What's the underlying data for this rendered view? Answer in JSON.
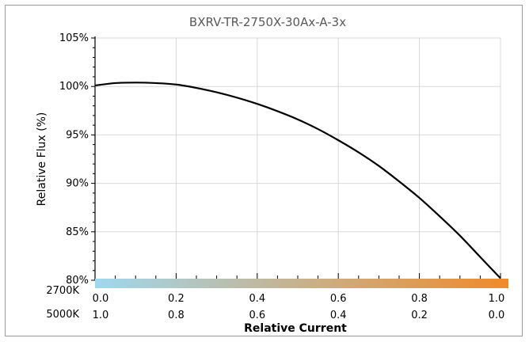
{
  "chart_data": {
    "type": "line",
    "title": "BXRV-TR-2750X-30Ax-A-3x",
    "xlabel": "Relative Current",
    "ylabel": "Relative Flux (%)",
    "xlim": [
      0.0,
      1.0
    ],
    "ylim": [
      80,
      105
    ],
    "yticks": [
      {
        "value": 80,
        "label": "80%"
      },
      {
        "value": 85,
        "label": "85%"
      },
      {
        "value": 90,
        "label": "90%"
      },
      {
        "value": 95,
        "label": "95%"
      },
      {
        "value": 100,
        "label": "100%"
      },
      {
        "value": 105,
        "label": "105%"
      }
    ],
    "xticks_top": [
      {
        "value": 0.0,
        "label": "0.0"
      },
      {
        "value": 0.2,
        "label": "0.2"
      },
      {
        "value": 0.4,
        "label": "0.4"
      },
      {
        "value": 0.6,
        "label": "0.6"
      },
      {
        "value": 0.8,
        "label": "0.8"
      },
      {
        "value": 1.0,
        "label": "1.0"
      }
    ],
    "xticks_bottom": [
      {
        "value": 0.0,
        "label": "1.0"
      },
      {
        "value": 0.2,
        "label": "0.8"
      },
      {
        "value": 0.4,
        "label": "0.6"
      },
      {
        "value": 0.6,
        "label": "0.4"
      },
      {
        "value": 0.8,
        "label": "0.2"
      },
      {
        "value": 1.0,
        "label": "0.0"
      }
    ],
    "cct_labels": {
      "top": "2700K",
      "bottom": "5000K"
    },
    "gradient": {
      "start": "#9fd8ee",
      "end": "#f08a2a"
    },
    "grid": true,
    "series": [
      {
        "color": "#000000",
        "x": [
          0.0,
          0.05,
          0.1,
          0.15,
          0.2,
          0.25,
          0.3,
          0.35,
          0.4,
          0.45,
          0.5,
          0.55,
          0.6,
          0.65,
          0.7,
          0.75,
          0.8,
          0.85,
          0.9,
          0.95,
          1.0
        ],
        "y": [
          100.1,
          100.35,
          100.4,
          100.35,
          100.2,
          99.85,
          99.4,
          98.85,
          98.2,
          97.45,
          96.6,
          95.6,
          94.45,
          93.2,
          91.8,
          90.2,
          88.5,
          86.6,
          84.6,
          82.4,
          80.2
        ]
      }
    ]
  }
}
